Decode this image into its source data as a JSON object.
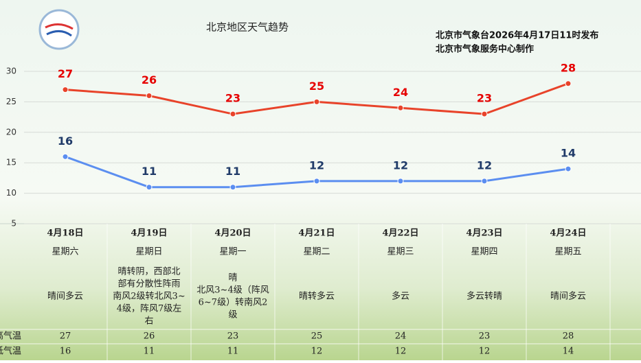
{
  "chart_data": {
    "type": "line",
    "title": "北京地区天气趋势",
    "issuer": [
      "北京市气象台2026年4月17日11时发布",
      "北京市气象服务中心制作"
    ],
    "categories": [
      "4月18日",
      "4月19日",
      "4月20日",
      "4月21日",
      "4月22日",
      "4月23日",
      "4月24日"
    ],
    "weekdays": [
      "星期六",
      "星期日",
      "星期一",
      "星期二",
      "星期三",
      "星期四",
      "星期五"
    ],
    "weather": [
      [
        "晴间多云"
      ],
      [
        "晴转阴，西部北",
        "部有分散性阵雨",
        "南风2级转北风3~",
        "4级，阵风7级左",
        "右"
      ],
      [
        "晴",
        "北风3~4级（阵风",
        "6~7级）转南风2",
        "级"
      ],
      [
        "晴转多云"
      ],
      [
        "多云"
      ],
      [
        "多云转晴"
      ],
      [
        "晴间多云"
      ]
    ],
    "series": [
      {
        "name": "最高气温",
        "color": "#e8432a",
        "label_color": "#e60000",
        "values": [
          27,
          26,
          23,
          25,
          24,
          23,
          28
        ]
      },
      {
        "name": "最低气温",
        "color": "#5b8ef0",
        "label_color": "#1f3a68",
        "values": [
          16,
          11,
          11,
          12,
          12,
          12,
          14
        ]
      }
    ],
    "ylim": [
      5,
      30
    ],
    "yticks": [
      5,
      10,
      15,
      20,
      25,
      30
    ],
    "grid": true
  }
}
